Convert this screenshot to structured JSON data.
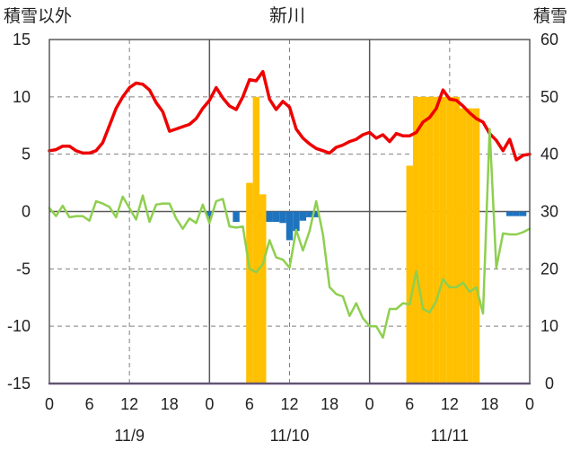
{
  "chart_data": {
    "type": "bar+line",
    "title": "新川",
    "ylabel_left": "積雪以外",
    "ylabel_right": "積雪",
    "ylim_left": [
      -15,
      15
    ],
    "ylim_right": [
      0,
      60
    ],
    "left_ticks": [
      "15",
      "10",
      "5",
      "0",
      "-5",
      "-10",
      "-15"
    ],
    "right_ticks": [
      "60",
      "50",
      "40",
      "30",
      "20",
      "10",
      "0"
    ],
    "xlim_hours": [
      0,
      72
    ],
    "x_tick_labels": [
      "0",
      "6",
      "12",
      "18",
      "0",
      "6",
      "12",
      "18",
      "0",
      "6",
      "12",
      "18",
      "0"
    ],
    "day_labels": [
      "11/9",
      "11/10",
      "11/11"
    ],
    "grid": true,
    "series": [
      {
        "color": "#ee0000",
        "axis": "left",
        "kind": "line",
        "x": [
          0,
          1,
          2,
          3,
          4,
          5,
          6,
          7,
          8,
          9,
          10,
          11,
          12,
          13,
          14,
          15,
          16,
          17,
          18,
          19,
          20,
          21,
          22,
          23,
          24,
          25,
          26,
          27,
          28,
          29,
          30,
          31,
          32,
          33,
          34,
          35,
          36,
          37,
          38,
          39,
          40,
          41,
          42,
          43,
          44,
          45,
          46,
          47,
          48,
          49,
          50,
          51,
          52,
          53,
          54,
          55,
          56,
          57,
          58,
          59,
          60,
          61,
          62,
          63,
          64,
          65,
          66,
          67,
          68,
          69,
          70,
          71,
          72
        ],
        "values": [
          5.3,
          5.4,
          5.7,
          5.7,
          5.3,
          5.1,
          5.1,
          5.3,
          6.0,
          7.5,
          9.0,
          10.0,
          10.8,
          11.2,
          11.1,
          10.6,
          9.5,
          8.7,
          7.0,
          7.2,
          7.4,
          7.6,
          8.1,
          9.0,
          9.7,
          10.8,
          9.9,
          9.2,
          8.9,
          10.0,
          11.5,
          11.4,
          12.2,
          9.8,
          8.9,
          9.6,
          9.1,
          7.2,
          6.4,
          5.9,
          5.5,
          5.3,
          5.1,
          5.6,
          5.8,
          6.1,
          6.3,
          6.7,
          6.9,
          6.4,
          6.7,
          6.1,
          6.8,
          6.6,
          6.6,
          6.9,
          7.8,
          8.2,
          9.0,
          10.6,
          9.8,
          9.7,
          9.2,
          8.6,
          8.1,
          7.8,
          6.8,
          6.2,
          5.3,
          6.3,
          4.5,
          4.9,
          5.0
        ]
      },
      {
        "color": "#8ecf4f",
        "axis": "left",
        "kind": "line",
        "x": [
          0,
          1,
          2,
          3,
          4,
          5,
          6,
          7,
          8,
          9,
          10,
          11,
          12,
          13,
          14,
          15,
          16,
          17,
          18,
          19,
          20,
          21,
          22,
          23,
          24,
          25,
          26,
          27,
          28,
          29,
          30,
          31,
          32,
          33,
          34,
          35,
          36,
          37,
          38,
          39,
          40,
          41,
          42,
          43,
          44,
          45,
          46,
          47,
          48,
          49,
          50,
          51,
          52,
          53,
          54,
          55,
          56,
          57,
          58,
          59,
          60,
          61,
          62,
          63,
          64,
          65,
          66,
          67,
          68,
          69,
          70,
          71,
          72
        ],
        "values": [
          0.3,
          -0.4,
          0.5,
          -0.5,
          -0.4,
          -0.4,
          -0.8,
          0.9,
          0.7,
          0.4,
          -0.5,
          1.3,
          0.3,
          -0.7,
          1.4,
          -0.9,
          0.6,
          0.7,
          0.7,
          -0.6,
          -1.5,
          -0.6,
          -1.0,
          0.6,
          -1.0,
          0.9,
          1.1,
          -1.3,
          -1.4,
          -1.3,
          -5.0,
          -5.3,
          -4.6,
          -2.5,
          -4.0,
          -4.2,
          -4.9,
          -1.6,
          -3.4,
          -1.7,
          0.9,
          -2.0,
          -6.6,
          -7.2,
          -7.4,
          -9.1,
          -8.0,
          -9.3,
          -10.0,
          -10.0,
          -11.0,
          -8.5,
          -8.5,
          -8.0,
          -8.1,
          -5.2,
          -8.5,
          -8.8,
          -7.8,
          -5.9,
          -6.6,
          -6.6,
          -6.2,
          -7.0,
          -6.6,
          -8.9,
          7.2,
          -4.9,
          -1.9,
          -2.0,
          -2.0,
          -1.8,
          -1.5
        ]
      },
      {
        "color": "#7b52a8",
        "axis": "left",
        "kind": "line",
        "x": [
          0,
          72
        ],
        "values": [
          -15,
          -15
        ]
      },
      {
        "color": "#1e73be",
        "axis": "left",
        "kind": "bar",
        "x": [
          24,
          28,
          32,
          33,
          34,
          35,
          36,
          37,
          38,
          39,
          40,
          69,
          70,
          71
        ],
        "values": [
          -0.4,
          -0.9,
          -0.8,
          -0.9,
          -0.9,
          -1.0,
          -2.5,
          -1.7,
          -0.8,
          -0.5,
          -0.5,
          -0.4,
          -0.4,
          -0.4
        ]
      },
      {
        "color": "#ffc000",
        "axis": "right",
        "kind": "bar",
        "x": [
          30,
          31,
          32,
          54,
          55,
          56,
          57,
          58,
          59,
          60,
          61,
          62,
          63,
          64
        ],
        "values": [
          35,
          50,
          33,
          38,
          50,
          50,
          50,
          50,
          50,
          50,
          50,
          48,
          48,
          48
        ]
      }
    ]
  }
}
